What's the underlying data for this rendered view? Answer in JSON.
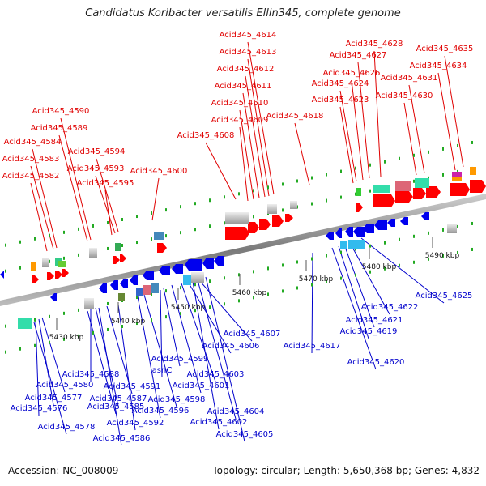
{
  "title": "Candidatus Koribacter versatilis Ellin345, complete genome",
  "footer": {
    "accession_label": "Accession:",
    "accession_value": "NC_008009",
    "topology_label": "Topology:",
    "topology_value": "circular",
    "length_label": "Length:",
    "length_value": "5,650,368 bp",
    "genes_label": "Genes:",
    "genes_value": "4,832"
  },
  "colors": {
    "forward_strand_label": "#e00000",
    "reverse_strand_label": "#0000cc",
    "backbone": "#888888",
    "forward_gene": "#ff0000",
    "reverse_gene": "#0000ee",
    "tick": "#22aa22"
  },
  "scale_ticks": [
    {
      "label": "5430 kbp"
    },
    {
      "label": "5440 kbp"
    },
    {
      "label": "5450 kbp"
    },
    {
      "label": "5460 kbp"
    },
    {
      "label": "5470 kbp"
    },
    {
      "label": "5480 kbp"
    },
    {
      "label": "5490 kbp"
    }
  ],
  "forward_genes": [
    {
      "label": "Acid345_4614"
    },
    {
      "label": "Acid345_4613"
    },
    {
      "label": "Acid345_4612"
    },
    {
      "label": "Acid345_4611"
    },
    {
      "label": "Acid345_4610"
    },
    {
      "label": "Acid345_4609"
    },
    {
      "label": "Acid345_4618"
    },
    {
      "label": "Acid345_4608"
    },
    {
      "label": "Acid345_4628"
    },
    {
      "label": "Acid345_4627"
    },
    {
      "label": "Acid345_4626"
    },
    {
      "label": "Acid345_4624"
    },
    {
      "label": "Acid345_4623"
    },
    {
      "label": "Acid345_4635"
    },
    {
      "label": "Acid345_4634"
    },
    {
      "label": "Acid345_4631"
    },
    {
      "label": "Acid345_4630"
    },
    {
      "label": "Acid345_4590"
    },
    {
      "label": "Acid345_4589"
    },
    {
      "label": "Acid345_4584"
    },
    {
      "label": "Acid345_4583"
    },
    {
      "label": "Acid345_4582"
    },
    {
      "label": "Acid345_4594"
    },
    {
      "label": "Acid345_4593"
    },
    {
      "label": "Acid345_4595"
    },
    {
      "label": "Acid345_4600"
    }
  ],
  "reverse_genes": [
    {
      "label": "Acid345_4625"
    },
    {
      "label": "Acid345_4622"
    },
    {
      "label": "Acid345_4621"
    },
    {
      "label": "Acid345_4619"
    },
    {
      "label": "Acid345_4617"
    },
    {
      "label": "Acid345_4620"
    },
    {
      "label": "Acid345_4607"
    },
    {
      "label": "Acid345_4606"
    },
    {
      "label": "Acid345_4599"
    },
    {
      "label": "asnC"
    },
    {
      "label": "Acid345_4603"
    },
    {
      "label": "Acid345_4601"
    },
    {
      "label": "Acid345_4588"
    },
    {
      "label": "Acid345_4591"
    },
    {
      "label": "Acid345_4580"
    },
    {
      "label": "Acid345_4587"
    },
    {
      "label": "Acid345_4598"
    },
    {
      "label": "Acid345_4577"
    },
    {
      "label": "Acid345_4585"
    },
    {
      "label": "Acid345_4596"
    },
    {
      "label": "Acid345_4576"
    },
    {
      "label": "Acid345_4604"
    },
    {
      "label": "Acid345_4592"
    },
    {
      "label": "Acid345_4602"
    },
    {
      "label": "Acid345_4578"
    },
    {
      "label": "Acid345_4605"
    },
    {
      "label": "Acid345_4586"
    }
  ]
}
